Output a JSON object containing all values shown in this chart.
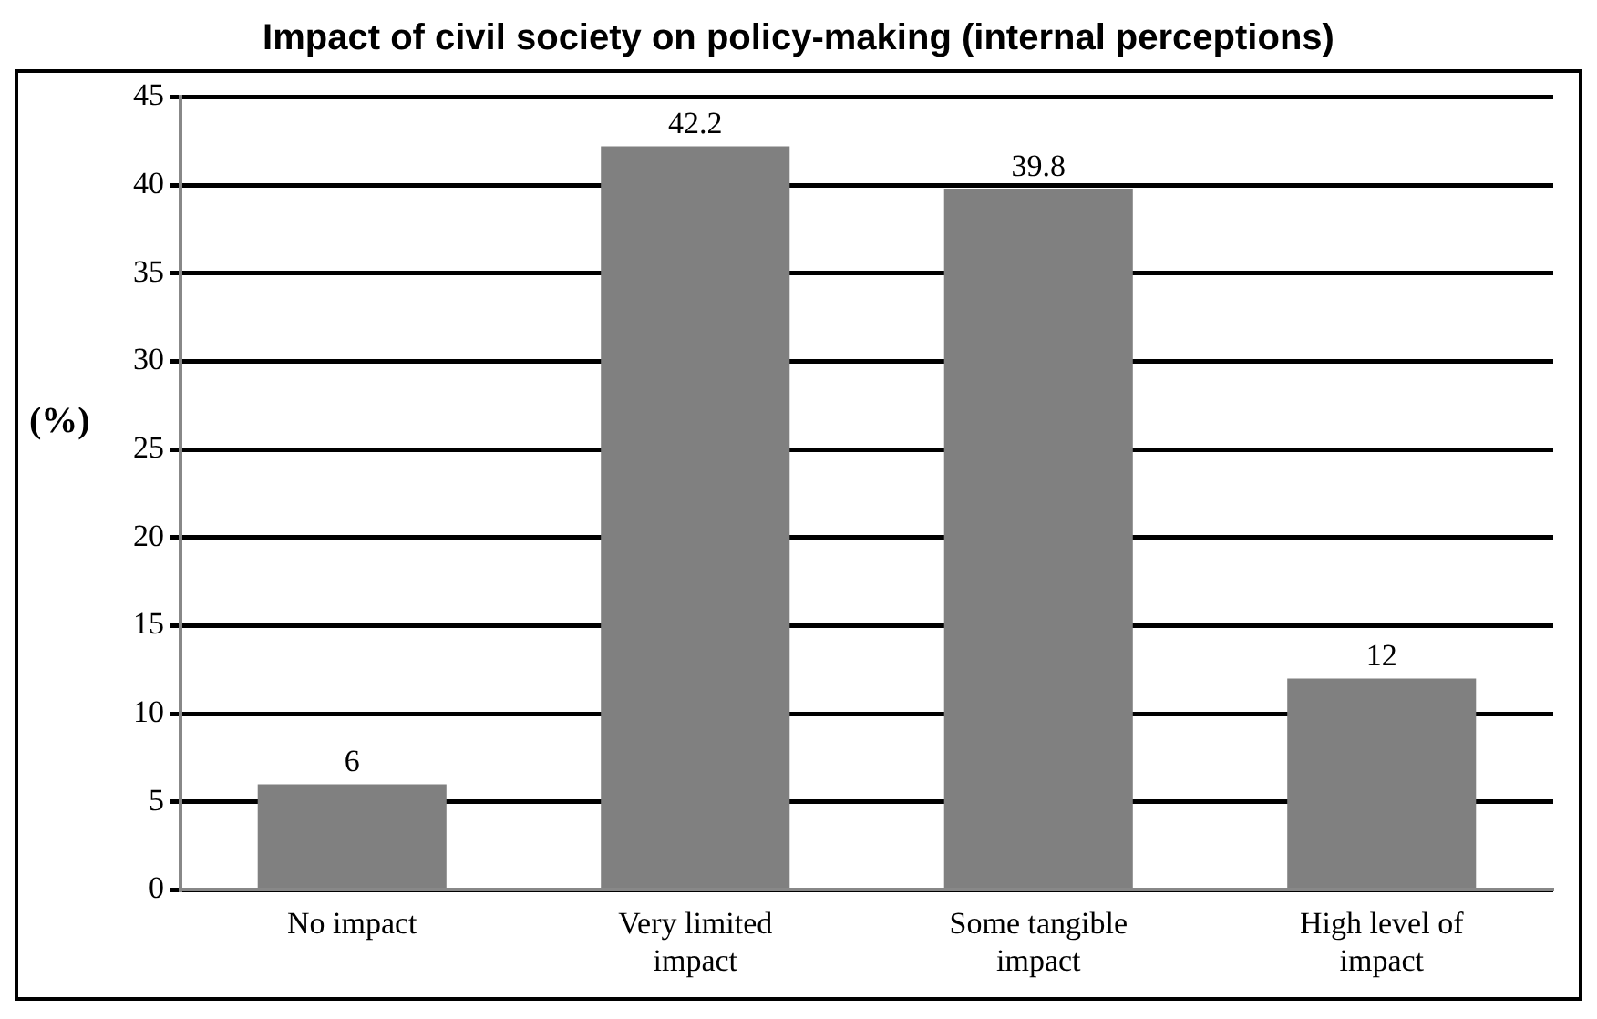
{
  "chart_data": {
    "type": "bar",
    "title": "Impact of civil society on policy-making (internal perceptions)",
    "ylabel": "(%)",
    "categories": [
      "No impact",
      "Very limited impact",
      "Some tangible impact",
      "High level of impact"
    ],
    "values": [
      6,
      42.2,
      39.8,
      12
    ],
    "color": "#808080",
    "ylim": [
      0,
      45
    ],
    "yticks": [
      0,
      5,
      10,
      15,
      20,
      25,
      30,
      35,
      40,
      45
    ],
    "grid": "y",
    "data_labels": true
  }
}
